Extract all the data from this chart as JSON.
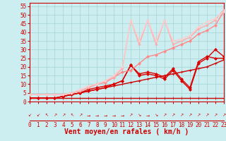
{
  "title": "",
  "xlabel": "Vent moyen/en rafales ( km/h )",
  "ylabel": "",
  "background_color": "#cceef0",
  "grid_color": "#aad8dc",
  "x_ticks": [
    0,
    1,
    2,
    3,
    4,
    5,
    6,
    7,
    8,
    9,
    10,
    11,
    12,
    13,
    14,
    15,
    16,
    17,
    18,
    19,
    20,
    21,
    22,
    23
  ],
  "y_ticks": [
    0,
    5,
    10,
    15,
    20,
    25,
    30,
    35,
    40,
    45,
    50,
    55
  ],
  "xlim": [
    0,
    23
  ],
  "ylim": [
    0,
    57
  ],
  "series": [
    {
      "x": [
        0,
        1,
        2,
        3,
        4,
        5,
        6,
        7,
        8,
        9,
        10,
        11,
        12,
        13,
        14,
        15,
        16,
        17,
        18,
        19,
        20,
        21,
        22,
        23
      ],
      "y": [
        2,
        2,
        2,
        2,
        2,
        2,
        2,
        2,
        2,
        2,
        2,
        2,
        2,
        2,
        2,
        2,
        2,
        2,
        2,
        2,
        2,
        2,
        2,
        2
      ],
      "color": "#cc0000",
      "lw": 1.0,
      "marker": "+",
      "ms": 3.0
    },
    {
      "x": [
        0,
        1,
        2,
        3,
        4,
        5,
        6,
        7,
        8,
        9,
        10,
        11,
        12,
        13,
        14,
        15,
        16,
        17,
        18,
        19,
        20,
        21,
        22,
        23
      ],
      "y": [
        2,
        2,
        2,
        2,
        3,
        4,
        5,
        6,
        7,
        8,
        9,
        10,
        11,
        12,
        13,
        14,
        15,
        16,
        17,
        18,
        19,
        20,
        22,
        24
      ],
      "color": "#cc0000",
      "lw": 1.0,
      "marker": "+",
      "ms": 3.0
    },
    {
      "x": [
        0,
        1,
        2,
        3,
        4,
        5,
        6,
        7,
        8,
        9,
        10,
        11,
        12,
        13,
        14,
        15,
        16,
        17,
        18,
        19,
        20,
        21,
        22,
        23
      ],
      "y": [
        2,
        2,
        2,
        2,
        3,
        4,
        5,
        6,
        7,
        8,
        10,
        12,
        21,
        15,
        16,
        15,
        13,
        18,
        12,
        7,
        22,
        25,
        30,
        26
      ],
      "color": "#dd0000",
      "lw": 1.0,
      "marker": "D",
      "ms": 2.0
    },
    {
      "x": [
        0,
        1,
        2,
        3,
        4,
        5,
        6,
        7,
        8,
        9,
        10,
        11,
        12,
        13,
        14,
        15,
        16,
        17,
        18,
        19,
        20,
        21,
        22,
        23
      ],
      "y": [
        2,
        2,
        2,
        2,
        3,
        4,
        5,
        7,
        8,
        9,
        10,
        12,
        21,
        16,
        17,
        16,
        14,
        19,
        13,
        8,
        23,
        26,
        25,
        25
      ],
      "color": "#dd0000",
      "lw": 1.0,
      "marker": "D",
      "ms": 2.0
    },
    {
      "x": [
        0,
        1,
        2,
        3,
        4,
        5,
        6,
        7,
        8,
        9,
        10,
        11,
        12,
        13,
        14,
        15,
        16,
        17,
        18,
        19,
        20,
        21,
        22,
        23
      ],
      "y": [
        4,
        4,
        4,
        4,
        4,
        5,
        6,
        8,
        10,
        11,
        14,
        17,
        18,
        22,
        26,
        27,
        29,
        31,
        33,
        35,
        39,
        41,
        44,
        52
      ],
      "color": "#ff8888",
      "lw": 1.0,
      "marker": "D",
      "ms": 2.0
    },
    {
      "x": [
        0,
        1,
        2,
        3,
        4,
        5,
        6,
        7,
        8,
        9,
        10,
        11,
        12,
        13,
        14,
        15,
        16,
        17,
        18,
        19,
        20,
        21,
        22,
        23
      ],
      "y": [
        4,
        4,
        4,
        4,
        4,
        5,
        6,
        8,
        10,
        12,
        14,
        19,
        47,
        33,
        47,
        33,
        47,
        33,
        35,
        37,
        42,
        44,
        47,
        53
      ],
      "color": "#ffaaaa",
      "lw": 1.0,
      "marker": "D",
      "ms": 1.5
    },
    {
      "x": [
        0,
        1,
        2,
        3,
        4,
        5,
        6,
        7,
        8,
        9,
        10,
        11,
        12,
        13,
        14,
        15,
        16,
        17,
        18,
        19,
        20,
        21,
        22,
        23
      ],
      "y": [
        4,
        4,
        4,
        4,
        4,
        5,
        7,
        9,
        10,
        12,
        15,
        20,
        47,
        35,
        47,
        35,
        47,
        35,
        36,
        38,
        43,
        46,
        48,
        52
      ],
      "color": "#ffcccc",
      "lw": 1.0,
      "marker": "D",
      "ms": 1.5
    }
  ],
  "arrows": [
    "↙",
    "↙",
    "↖",
    "↗",
    "↗",
    "↖",
    "↗",
    "→",
    "→",
    "→",
    "→",
    "→",
    "↗",
    "↘",
    "→",
    "↘",
    "↗",
    "↗",
    "↗",
    "↗",
    "↗",
    "↗",
    "↗",
    "↗"
  ],
  "xlabel_fontsize": 7,
  "tick_fontsize": 5.5,
  "tick_color": "#cc0000",
  "axis_color": "#cc0000",
  "xlabel_color": "#cc0000",
  "xlabel_bold": true
}
